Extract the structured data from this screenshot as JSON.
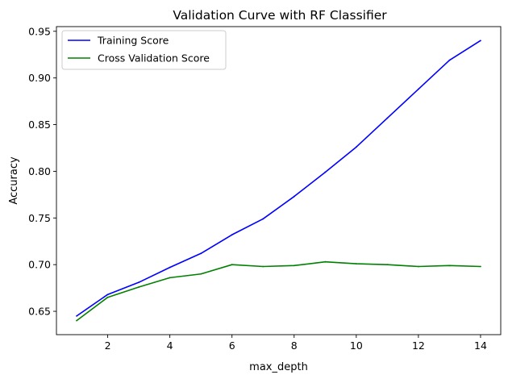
{
  "chart_data": {
    "type": "line",
    "title": "Validation Curve with RF Classifier",
    "xlabel": "max_depth",
    "ylabel": "Accuracy",
    "x": [
      1,
      2,
      3,
      4,
      5,
      6,
      7,
      8,
      9,
      10,
      11,
      12,
      13,
      14
    ],
    "xlim": [
      0.35,
      14.65
    ],
    "ylim": [
      0.625,
      0.955
    ],
    "xticks": [
      2,
      4,
      6,
      8,
      10,
      12,
      14
    ],
    "yticks": [
      0.65,
      0.7,
      0.75,
      0.8,
      0.85,
      0.9,
      0.95
    ],
    "ytick_labels": [
      "0.65",
      "0.70",
      "0.75",
      "0.80",
      "0.85",
      "0.90",
      "0.95"
    ],
    "grid": false,
    "legend_position": "top-left",
    "series": [
      {
        "name": "Training Score",
        "color": "#0000ff",
        "values": [
          0.645,
          0.668,
          0.681,
          0.697,
          0.712,
          0.732,
          0.749,
          0.773,
          0.799,
          0.826,
          0.857,
          0.888,
          0.919,
          0.94
        ]
      },
      {
        "name": "Cross Validation Score",
        "color": "#008000",
        "values": [
          0.64,
          0.665,
          0.676,
          0.686,
          0.69,
          0.7,
          0.698,
          0.699,
          0.703,
          0.701,
          0.7,
          0.698,
          0.699,
          0.698
        ]
      }
    ]
  }
}
